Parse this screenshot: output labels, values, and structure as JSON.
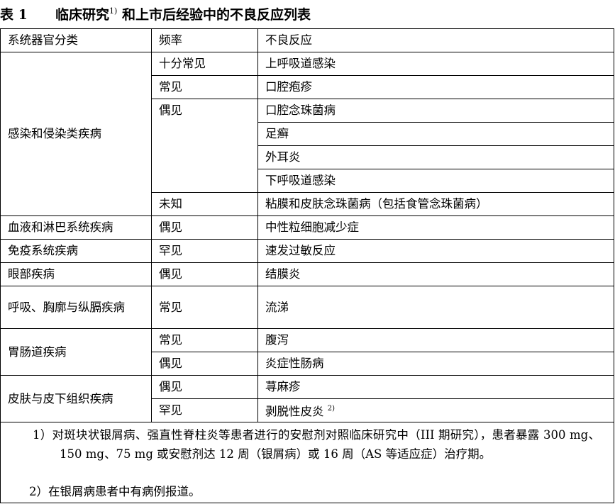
{
  "title": {
    "label": "表 1",
    "text": "临床研究",
    "sup": "1)",
    "text2": "和上市后经验中的不良反应列表"
  },
  "headers": [
    "系统器官分类",
    "频率",
    "不良反应"
  ],
  "groups": {
    "infection": {
      "soc": "感染和侵染类疾病",
      "f1": "十分常见",
      "r1": "上呼吸道感染",
      "f2": "常见",
      "r2": "口腔疱疹",
      "f3": "偶见",
      "r3": "口腔念珠菌病",
      "r4": "足癣",
      "r5": "外耳炎",
      "r6": "下呼吸道感染",
      "f4": "未知",
      "r7": "粘膜和皮肤念珠菌病（包括食管念珠菌病）"
    },
    "blood": {
      "soc": "血液和淋巴系统疾病",
      "f": "偶见",
      "r": "中性粒细胞减少症"
    },
    "immune": {
      "soc": "免疫系统疾病",
      "f": "罕见",
      "r": "速发过敏反应"
    },
    "eye": {
      "soc": "眼部疾病",
      "f": "偶见",
      "r": "结膜炎"
    },
    "resp": {
      "soc": "呼吸、胸廓与纵膈疾病",
      "f": "常见",
      "r": "流涕"
    },
    "gi": {
      "soc": "胃肠道疾病",
      "f1": "常见",
      "r1": "腹泻",
      "f2": "偶见",
      "r2": "炎症性肠病"
    },
    "skin": {
      "soc": "皮肤与皮下组织疾病",
      "f1": "偶见",
      "r1": "荨麻疹",
      "f2": "罕见",
      "r2": "剥脱性皮炎",
      "r2_sup": "2)"
    }
  },
  "footnotes": [
    "1）对斑块状银屑病、强直性脊柱炎等患者进行的安慰剂对照临床研究中（III 期研究），患者暴露 300 mg、150 mg、75 mg 或安慰剂达 12 周（银屑病）或 16 周（AS 等适应症）治疗期。",
    "2）在银屑病患者中有病例报道。"
  ]
}
